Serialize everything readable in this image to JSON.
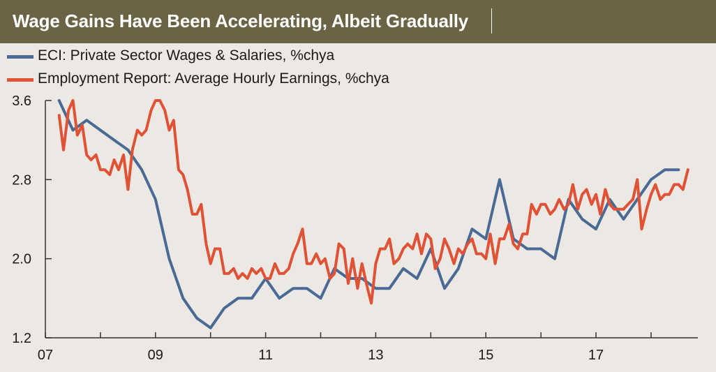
{
  "title": "Wage Gains Have Been Accelerating, Albeit Gradually",
  "chart_data": {
    "type": "line",
    "title": "Wage Gains Have Been Accelerating, Albeit Gradually",
    "xlabel": "",
    "ylabel": "",
    "xlim": [
      2007.0,
      2018.85
    ],
    "ylim": [
      1.2,
      3.6
    ],
    "x_ticks": [
      {
        "value": 2007,
        "label": "07"
      },
      {
        "value": 2009,
        "label": "09"
      },
      {
        "value": 2011,
        "label": "11"
      },
      {
        "value": 2013,
        "label": "13"
      },
      {
        "value": 2015,
        "label": "15"
      },
      {
        "value": 2017,
        "label": "17"
      }
    ],
    "y_ticks": [
      {
        "value": 1.2,
        "label": "1.2"
      },
      {
        "value": 2.0,
        "label": "2.0"
      },
      {
        "value": 2.8,
        "label": "2.8"
      },
      {
        "value": 3.6,
        "label": "3.6"
      }
    ],
    "grid": false,
    "legend": "top-left",
    "series": [
      {
        "name": "ECI:  Private Sector Wages & Salaries, %chya",
        "color": "#4a6a96",
        "points": [
          [
            2007.25,
            3.6
          ],
          [
            2007.5,
            3.3
          ],
          [
            2007.75,
            3.4
          ],
          [
            2008.0,
            3.3
          ],
          [
            2008.25,
            3.2
          ],
          [
            2008.5,
            3.1
          ],
          [
            2008.75,
            2.9
          ],
          [
            2009.0,
            2.6
          ],
          [
            2009.25,
            2.0
          ],
          [
            2009.5,
            1.6
          ],
          [
            2009.75,
            1.4
          ],
          [
            2010.0,
            1.3
          ],
          [
            2010.25,
            1.5
          ],
          [
            2010.5,
            1.6
          ],
          [
            2010.75,
            1.6
          ],
          [
            2011.0,
            1.8
          ],
          [
            2011.25,
            1.6
          ],
          [
            2011.5,
            1.7
          ],
          [
            2011.75,
            1.7
          ],
          [
            2012.0,
            1.6
          ],
          [
            2012.25,
            1.9
          ],
          [
            2012.5,
            1.8
          ],
          [
            2012.75,
            1.8
          ],
          [
            2013.0,
            1.7
          ],
          [
            2013.25,
            1.7
          ],
          [
            2013.5,
            1.9
          ],
          [
            2013.75,
            1.8
          ],
          [
            2014.0,
            2.1
          ],
          [
            2014.25,
            1.7
          ],
          [
            2014.5,
            1.9
          ],
          [
            2014.75,
            2.3
          ],
          [
            2015.0,
            2.2
          ],
          [
            2015.25,
            2.8
          ],
          [
            2015.5,
            2.2
          ],
          [
            2015.75,
            2.1
          ],
          [
            2016.0,
            2.1
          ],
          [
            2016.25,
            2.0
          ],
          [
            2016.5,
            2.6
          ],
          [
            2016.75,
            2.4
          ],
          [
            2017.0,
            2.3
          ],
          [
            2017.25,
            2.6
          ],
          [
            2017.5,
            2.4
          ],
          [
            2017.75,
            2.6
          ],
          [
            2018.0,
            2.8
          ],
          [
            2018.25,
            2.9
          ],
          [
            2018.5,
            2.9
          ]
        ]
      },
      {
        "name": "Employment Report:  Average Hourly Earnings, %chya",
        "color": "#e05236",
        "points": [
          [
            2007.25,
            3.45
          ],
          [
            2007.33,
            3.1
          ],
          [
            2007.42,
            3.5
          ],
          [
            2007.5,
            3.6
          ],
          [
            2007.58,
            3.25
          ],
          [
            2007.67,
            3.35
          ],
          [
            2007.75,
            3.05
          ],
          [
            2007.83,
            3.0
          ],
          [
            2007.92,
            3.05
          ],
          [
            2008.0,
            2.9
          ],
          [
            2008.08,
            2.9
          ],
          [
            2008.17,
            2.85
          ],
          [
            2008.25,
            3.0
          ],
          [
            2008.33,
            2.9
          ],
          [
            2008.42,
            3.05
          ],
          [
            2008.5,
            2.7
          ],
          [
            2008.58,
            3.1
          ],
          [
            2008.67,
            3.3
          ],
          [
            2008.75,
            3.25
          ],
          [
            2008.83,
            3.3
          ],
          [
            2008.92,
            3.5
          ],
          [
            2009.0,
            3.6
          ],
          [
            2009.08,
            3.6
          ],
          [
            2009.17,
            3.5
          ],
          [
            2009.25,
            3.3
          ],
          [
            2009.33,
            3.4
          ],
          [
            2009.42,
            2.9
          ],
          [
            2009.5,
            2.85
          ],
          [
            2009.58,
            2.7
          ],
          [
            2009.67,
            2.45
          ],
          [
            2009.75,
            2.45
          ],
          [
            2009.83,
            2.55
          ],
          [
            2009.92,
            2.15
          ],
          [
            2010.0,
            1.95
          ],
          [
            2010.08,
            2.1
          ],
          [
            2010.17,
            2.1
          ],
          [
            2010.25,
            1.85
          ],
          [
            2010.33,
            1.85
          ],
          [
            2010.42,
            1.9
          ],
          [
            2010.5,
            1.8
          ],
          [
            2010.58,
            1.85
          ],
          [
            2010.67,
            1.8
          ],
          [
            2010.75,
            1.9
          ],
          [
            2010.83,
            1.85
          ],
          [
            2010.92,
            1.9
          ],
          [
            2011.0,
            1.8
          ],
          [
            2011.08,
            1.8
          ],
          [
            2011.17,
            1.95
          ],
          [
            2011.25,
            1.85
          ],
          [
            2011.33,
            1.85
          ],
          [
            2011.42,
            1.9
          ],
          [
            2011.5,
            2.05
          ],
          [
            2011.58,
            2.15
          ],
          [
            2011.67,
            2.3
          ],
          [
            2011.75,
            1.95
          ],
          [
            2011.83,
            1.95
          ],
          [
            2011.92,
            2.05
          ],
          [
            2012.0,
            1.95
          ],
          [
            2012.08,
            2.0
          ],
          [
            2012.17,
            1.8
          ],
          [
            2012.25,
            1.85
          ],
          [
            2012.33,
            2.15
          ],
          [
            2012.42,
            2.1
          ],
          [
            2012.5,
            1.75
          ],
          [
            2012.58,
            2.0
          ],
          [
            2012.67,
            1.7
          ],
          [
            2012.75,
            1.95
          ],
          [
            2012.83,
            1.75
          ],
          [
            2012.92,
            1.55
          ],
          [
            2013.0,
            1.95
          ],
          [
            2013.08,
            2.1
          ],
          [
            2013.17,
            2.1
          ],
          [
            2013.25,
            2.2
          ],
          [
            2013.33,
            1.95
          ],
          [
            2013.42,
            2.0
          ],
          [
            2013.5,
            2.1
          ],
          [
            2013.58,
            2.15
          ],
          [
            2013.67,
            2.1
          ],
          [
            2013.75,
            2.25
          ],
          [
            2013.83,
            2.05
          ],
          [
            2013.92,
            2.25
          ],
          [
            2014.0,
            2.2
          ],
          [
            2014.08,
            1.9
          ],
          [
            2014.17,
            2.0
          ],
          [
            2014.25,
            2.2
          ],
          [
            2014.33,
            2.1
          ],
          [
            2014.42,
            1.95
          ],
          [
            2014.5,
            2.1
          ],
          [
            2014.58,
            2.05
          ],
          [
            2014.67,
            2.15
          ],
          [
            2014.75,
            2.2
          ],
          [
            2014.83,
            2.05
          ],
          [
            2014.92,
            2.05
          ],
          [
            2015.0,
            2.0
          ],
          [
            2015.08,
            2.25
          ],
          [
            2015.17,
            1.95
          ],
          [
            2015.25,
            2.2
          ],
          [
            2015.33,
            2.2
          ],
          [
            2015.42,
            2.35
          ],
          [
            2015.5,
            2.15
          ],
          [
            2015.58,
            2.1
          ],
          [
            2015.67,
            2.25
          ],
          [
            2015.75,
            2.25
          ],
          [
            2015.83,
            2.55
          ],
          [
            2015.92,
            2.45
          ],
          [
            2016.0,
            2.55
          ],
          [
            2016.08,
            2.55
          ],
          [
            2016.17,
            2.45
          ],
          [
            2016.25,
            2.5
          ],
          [
            2016.33,
            2.6
          ],
          [
            2016.42,
            2.5
          ],
          [
            2016.5,
            2.55
          ],
          [
            2016.58,
            2.75
          ],
          [
            2016.67,
            2.5
          ],
          [
            2016.75,
            2.65
          ],
          [
            2016.83,
            2.7
          ],
          [
            2016.92,
            2.55
          ],
          [
            2017.0,
            2.65
          ],
          [
            2017.08,
            2.45
          ],
          [
            2017.17,
            2.7
          ],
          [
            2017.25,
            2.55
          ],
          [
            2017.33,
            2.5
          ],
          [
            2017.42,
            2.5
          ],
          [
            2017.5,
            2.5
          ],
          [
            2017.58,
            2.55
          ],
          [
            2017.67,
            2.6
          ],
          [
            2017.75,
            2.8
          ],
          [
            2017.83,
            2.3
          ],
          [
            2017.92,
            2.5
          ],
          [
            2018.0,
            2.65
          ],
          [
            2018.08,
            2.75
          ],
          [
            2018.17,
            2.6
          ],
          [
            2018.25,
            2.65
          ],
          [
            2018.33,
            2.65
          ],
          [
            2018.42,
            2.75
          ],
          [
            2018.5,
            2.75
          ],
          [
            2018.58,
            2.7
          ],
          [
            2018.67,
            2.9
          ]
        ]
      }
    ]
  }
}
